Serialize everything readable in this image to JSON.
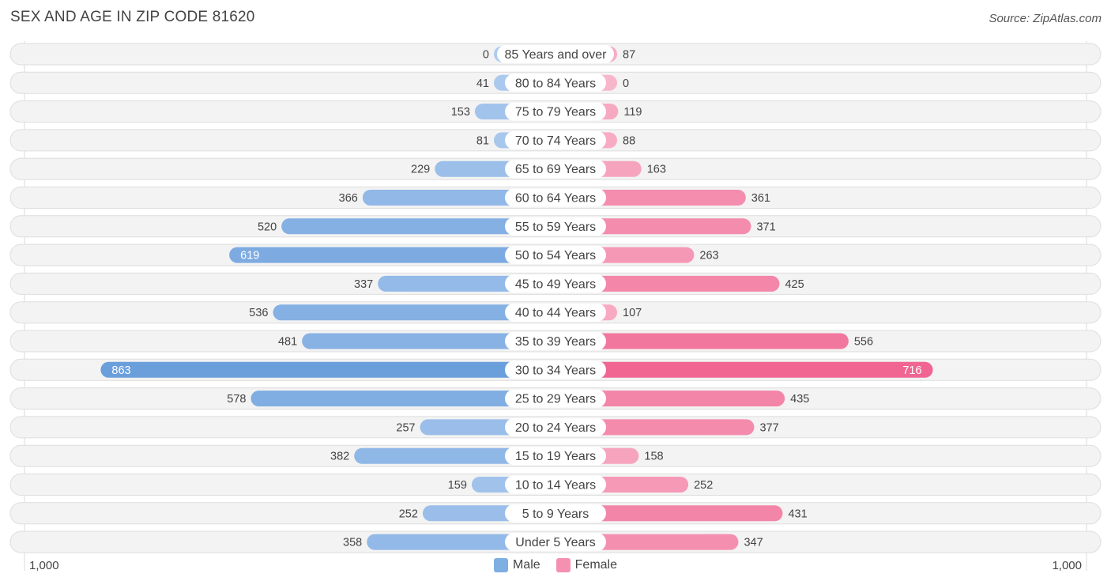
{
  "title": "SEX AND AGE IN ZIP CODE 81620",
  "source": "Source: ZipAtlas.com",
  "colors": {
    "male": "#7faee3",
    "male_strong": "#6a9fdc",
    "female": "#f590b0",
    "female_strong": "#f06592",
    "row_bg": "#f3f3f3",
    "row_border": "#dedede"
  },
  "legend": {
    "male_label": "Male",
    "female_label": "Female"
  },
  "axis": {
    "left_label": "1,000",
    "right_label": "1,000"
  },
  "chart_data": {
    "type": "bar",
    "orientation": "horizontal-diverging",
    "title": "SEX AND AGE IN ZIP CODE 81620",
    "xlim": [
      -1000,
      1000
    ],
    "categories": [
      "85 Years and over",
      "80 to 84 Years",
      "75 to 79 Years",
      "70 to 74 Years",
      "65 to 69 Years",
      "60 to 64 Years",
      "55 to 59 Years",
      "50 to 54 Years",
      "45 to 49 Years",
      "40 to 44 Years",
      "35 to 39 Years",
      "30 to 34 Years",
      "25 to 29 Years",
      "20 to 24 Years",
      "15 to 19 Years",
      "10 to 14 Years",
      "5 to 9 Years",
      "Under 5 Years"
    ],
    "series": [
      {
        "name": "Male",
        "values": [
          0,
          41,
          153,
          81,
          229,
          366,
          520,
          619,
          337,
          536,
          481,
          863,
          578,
          257,
          382,
          159,
          252,
          358
        ]
      },
      {
        "name": "Female",
        "values": [
          87,
          0,
          119,
          88,
          163,
          361,
          371,
          263,
          425,
          107,
          556,
          716,
          435,
          377,
          158,
          252,
          431,
          347
        ]
      }
    ],
    "legend_position": "bottom-center",
    "grid": false
  }
}
